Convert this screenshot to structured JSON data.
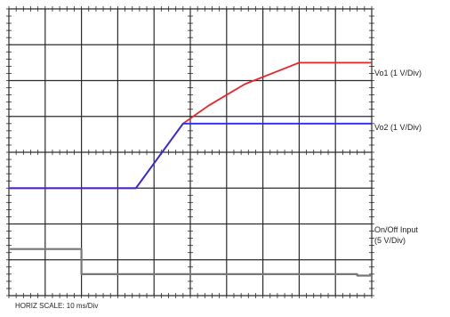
{
  "chart_data": {
    "type": "line",
    "title": "",
    "x_unit": "div",
    "y_unit": "div",
    "xlim": [
      0,
      10
    ],
    "ylim": [
      0,
      8
    ],
    "grid": true,
    "series": [
      {
        "name": "Vo1 (1 V/Div)",
        "color": "#e8262a",
        "x": [
          0,
          3.0,
          3.5,
          4.8,
          5.5,
          6.5,
          7.5,
          8.0,
          10.0
        ],
        "y": [
          3.0,
          3.0,
          3.0,
          4.8,
          5.3,
          5.9,
          6.3,
          6.5,
          6.5
        ]
      },
      {
        "name": "Vo2 (1 V/Div)",
        "color": "#2a2ae8",
        "x": [
          0,
          3.0,
          3.5,
          4.8,
          10.0
        ],
        "y": [
          3.0,
          3.0,
          3.0,
          4.8,
          4.8
        ]
      },
      {
        "name": "On/Off Input (5 V/Div)",
        "color": "#777777",
        "x": [
          0,
          2.0,
          2.0,
          9.6,
          9.6,
          10.0
        ],
        "y": [
          1.3,
          1.3,
          0.6,
          0.6,
          0.56,
          0.56
        ]
      }
    ],
    "legend": [
      "Vo1 (1 V/Div)",
      "Vo2 (1 V/Div)",
      "On/Off Input",
      "(5 V/Div)"
    ],
    "xlabel": "HORIZ SCALE: 10 ms/Div"
  }
}
